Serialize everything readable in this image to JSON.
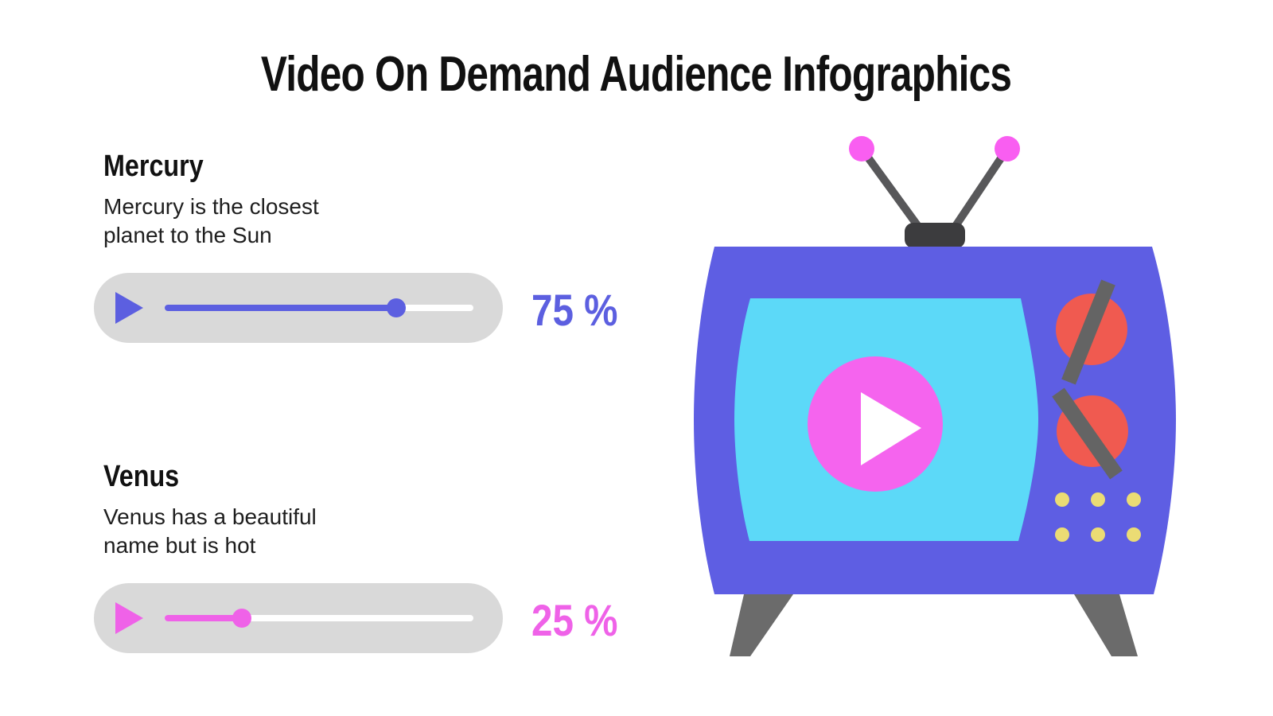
{
  "title": "Video On Demand Audience Infographics",
  "players": [
    {
      "heading": "Mercury",
      "description": "Mercury is the closest planet to the Sun",
      "percent": 75,
      "percent_label": "75 %",
      "accent": "#5C5FE0"
    },
    {
      "heading": "Venus",
      "description": "Venus has a beautiful name but is hot",
      "percent": 25,
      "percent_label": "25 %",
      "accent": "#EF62E8"
    }
  ],
  "player_style": {
    "background": "#D9D9D9",
    "track_color": "#FFFFFF"
  },
  "illustration": {
    "name": "retro-tv-with-play-button",
    "colors": {
      "body": "#5E5EE3",
      "screen": "#5CD9F8",
      "play_circle": "#F564EE",
      "play_triangle": "#FFFFFF",
      "knob": "#F05A50",
      "knob_marker": "#646464",
      "dots": "#EBDC74",
      "legs": "#6B6B6B",
      "antenna_rod": "#58585A",
      "antenna_base": "#3C3C3E",
      "antenna_tip": "#F95EF1"
    }
  },
  "chart_data": {
    "type": "bar",
    "title": "Video On Demand Audience Infographics",
    "categories": [
      "Mercury",
      "Venus"
    ],
    "values": [
      75,
      25
    ],
    "unit": "%",
    "value_labels": [
      "75 %",
      "25 %"
    ],
    "annotations": [
      "Mercury is the closest planet to the Sun",
      "Venus has a beautiful name but is hot"
    ],
    "xlim": [
      0,
      100
    ],
    "legend": false,
    "grid": false
  }
}
